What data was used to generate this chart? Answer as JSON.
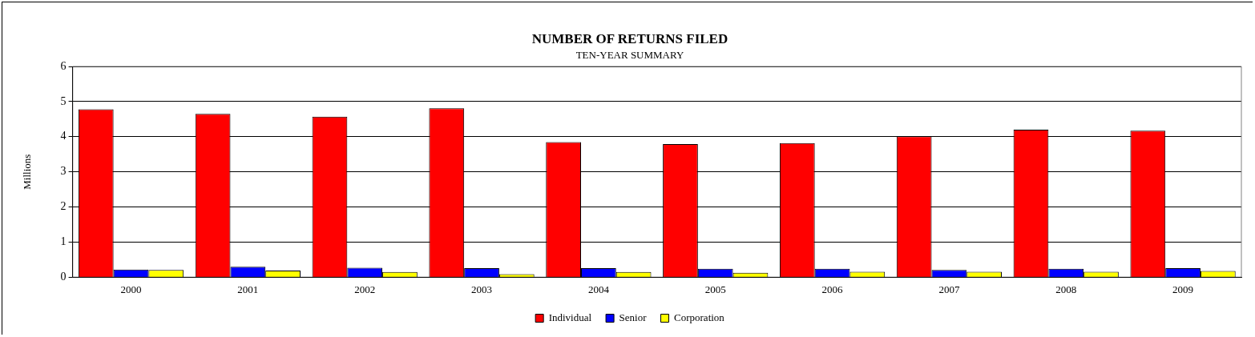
{
  "chart_data": {
    "type": "bar",
    "title": "NUMBER OF RETURNS FILED",
    "subtitle": "TEN-YEAR SUMMARY",
    "ylabel": "Millions",
    "categories": [
      "2000",
      "2001",
      "2002",
      "2003",
      "2004",
      "2005",
      "2006",
      "2007",
      "2008",
      "2009"
    ],
    "series": [
      {
        "name": "Individual",
        "color": "#ff0000",
        "values": [
          4.78,
          4.65,
          4.57,
          4.81,
          3.85,
          3.79,
          3.82,
          4.01,
          4.2,
          4.17
        ]
      },
      {
        "name": "Senior",
        "color": "#0000ff",
        "values": [
          0.22,
          0.3,
          0.27,
          0.26,
          0.26,
          0.24,
          0.24,
          0.21,
          0.24,
          0.26
        ]
      },
      {
        "name": "Corporation",
        "color": "#ffff00",
        "values": [
          0.21,
          0.19,
          0.15,
          0.09,
          0.15,
          0.13,
          0.16,
          0.16,
          0.16,
          0.18
        ]
      }
    ],
    "ylim": [
      0,
      6
    ],
    "yticks": [
      0,
      1,
      2,
      3,
      4,
      5,
      6
    ],
    "grid": "y",
    "legend": "bottom"
  }
}
